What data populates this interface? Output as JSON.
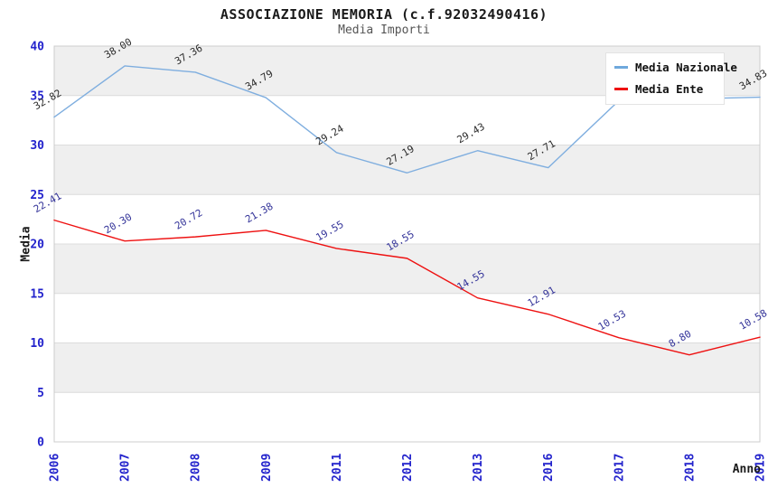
{
  "header": {
    "title": "ASSOCIAZIONE MEMORIA (c.f.92032490416)",
    "subtitle": "Media Importi"
  },
  "legend": {
    "items": [
      {
        "label": "Media Nazionale",
        "color": "#6fa8dc"
      },
      {
        "label": "Media Ente",
        "color": "#ee1111"
      }
    ]
  },
  "chart_data": {
    "type": "line",
    "x": [
      "2006",
      "2007",
      "2008",
      "2009",
      "2011",
      "2012",
      "2013",
      "2016",
      "2017",
      "2018",
      "2019"
    ],
    "series": [
      {
        "name": "Media Nazionale",
        "color": "#7faedf",
        "label_color": "#2b2b2b",
        "values": [
          32.82,
          38.0,
          37.36,
          34.79,
          29.24,
          27.19,
          29.43,
          27.71,
          34.47,
          34.66,
          34.83
        ],
        "labels": [
          "32.82",
          "38.00",
          "37.36",
          "34.79",
          "29.24",
          "27.19",
          "29.43",
          "27.71",
          null,
          null,
          "34.83"
        ]
      },
      {
        "name": "Media Ente",
        "color": "#ee1111",
        "label_color": "#333399",
        "values": [
          22.41,
          20.3,
          20.72,
          21.38,
          19.55,
          18.55,
          14.55,
          12.91,
          10.53,
          8.8,
          10.58
        ],
        "labels": [
          "22.41",
          "20.30",
          "20.72",
          "21.38",
          "19.55",
          "18.55",
          "14.55",
          "12.91",
          "10.53",
          "8.80",
          "10.58"
        ]
      }
    ],
    "xlabel": "Anno",
    "ylabel": "Media",
    "ylim": [
      0,
      40
    ],
    "yticks": [
      0,
      5,
      10,
      15,
      20,
      25,
      30,
      35,
      40
    ],
    "grid": true,
    "legend_position": "top-right",
    "band_colors": [
      "#ffffff",
      "#efefef"
    ],
    "tick_label_color": "#2323cc",
    "note": "blue-series labels for 2017 and 2018 hidden behind legend box"
  }
}
